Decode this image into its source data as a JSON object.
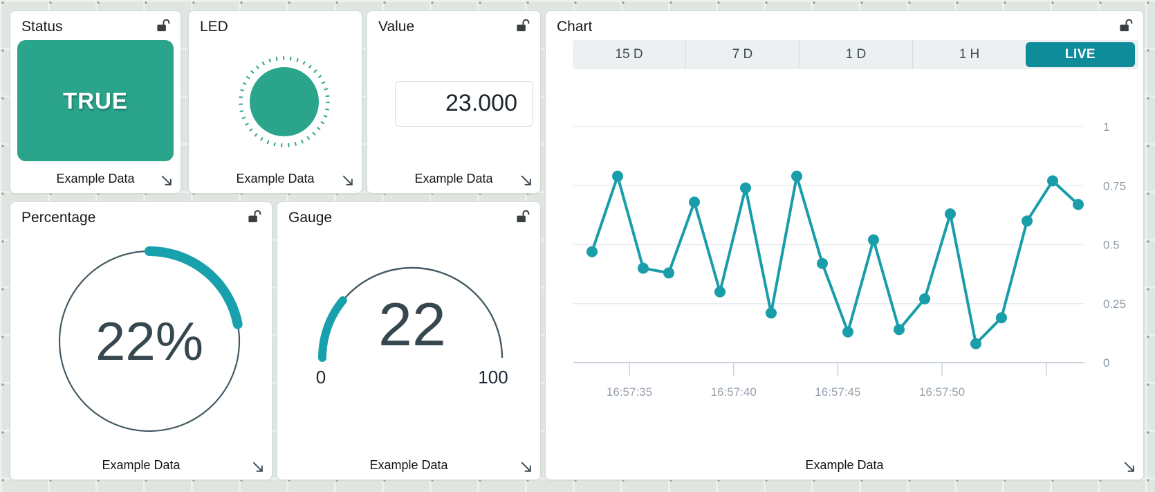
{
  "colors": {
    "teal_green": "#2aa58c",
    "teal_chart": "#189da9",
    "live_button": "#0e8c99",
    "slate_text": "#37474f",
    "gauge_outline": "#455a64",
    "axis_label": "#8e99a6",
    "gridline": "#e7edef",
    "axis_line": "#c9d1dd"
  },
  "widgets": {
    "status": {
      "title": "Status",
      "value": "TRUE",
      "footer": "Example Data"
    },
    "led": {
      "title": "LED",
      "footer": "Example Data"
    },
    "value": {
      "title": "Value",
      "value": "23.000",
      "footer": "Example Data"
    },
    "chart": {
      "title": "Chart",
      "range_tabs": [
        "15 D",
        "7 D",
        "1 D",
        "1 H",
        "LIVE"
      ],
      "selected_tab": "LIVE",
      "footer": "Example Data"
    },
    "percentage": {
      "title": "Percentage",
      "value": 22,
      "display": "22%",
      "footer": "Example Data"
    },
    "gauge": {
      "title": "Gauge",
      "value": 22,
      "min": 0,
      "max": 100,
      "footer": "Example Data"
    }
  },
  "chart_data": {
    "type": "line",
    "series": [
      {
        "name": "Example Data",
        "values": [
          0.47,
          0.79,
          0.4,
          0.38,
          0.68,
          0.3,
          0.74,
          0.21,
          0.79,
          0.42,
          0.13,
          0.52,
          0.14,
          0.27,
          0.63,
          0.08,
          0.19,
          0.6,
          0.77,
          0.67
        ]
      }
    ],
    "x_start_time": "16:57:33",
    "x_interval_seconds": 1.2,
    "x_tick_labels": [
      "16:57:35",
      "16:57:40",
      "16:57:45",
      "16:57:50"
    ],
    "y_ticks": [
      "0",
      "0.25",
      "0.5",
      "0.75",
      "1"
    ],
    "ylim": [
      0,
      1
    ],
    "grid": true,
    "y_axis_side": "right",
    "legend_position": "none",
    "line_color": "#189da9",
    "selected_range": "LIVE"
  }
}
